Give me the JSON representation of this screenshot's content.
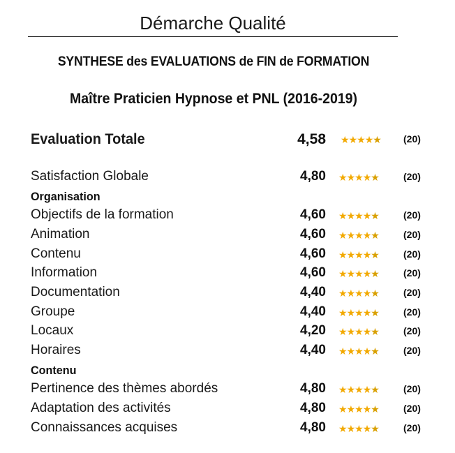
{
  "header": {
    "title": "Démarche Qualité"
  },
  "subtitle": "SYNTHESE des EVALUATIONS de FIN de FORMATION",
  "course": "Maître Praticien Hypnose et PNL (2016-2019)",
  "total": {
    "label": "Evaluation Totale",
    "score": "4,58",
    "stars": 4.58,
    "count": "(20)"
  },
  "satisfaction": {
    "label": "Satisfaction Globale",
    "score": "4,80",
    "stars": 4.8,
    "count": "(20)"
  },
  "organisation": {
    "heading": "Organisation",
    "rows": [
      {
        "label": "Objectifs de la formation",
        "score": "4,60",
        "stars": 4.6,
        "count": "(20)"
      },
      {
        "label": "Animation",
        "score": "4,60",
        "stars": 4.6,
        "count": "(20)"
      },
      {
        "label": "Contenu",
        "score": "4,60",
        "stars": 4.6,
        "count": "(20)"
      },
      {
        "label": "Information",
        "score": "4,60",
        "stars": 4.6,
        "count": "(20)"
      },
      {
        "label": "Documentation",
        "score": "4,40",
        "stars": 4.4,
        "count": "(20)"
      },
      {
        "label": "Groupe",
        "score": "4,40",
        "stars": 4.4,
        "count": "(20)"
      },
      {
        "label": "Locaux",
        "score": "4,20",
        "stars": 4.2,
        "count": "(20)"
      },
      {
        "label": "Horaires",
        "score": "4,40",
        "stars": 4.4,
        "count": "(20)"
      }
    ]
  },
  "contenu": {
    "heading": "Contenu",
    "rows": [
      {
        "label": "Pertinence des thèmes abordés",
        "score": "4,80",
        "stars": 4.8,
        "count": "(20)"
      },
      {
        "label": "Adaptation des activités",
        "score": "4,80",
        "stars": 4.8,
        "count": "(20)"
      },
      {
        "label": "Connaissances acquises",
        "score": "4,80",
        "stars": 4.8,
        "count": "(20)"
      }
    ]
  }
}
